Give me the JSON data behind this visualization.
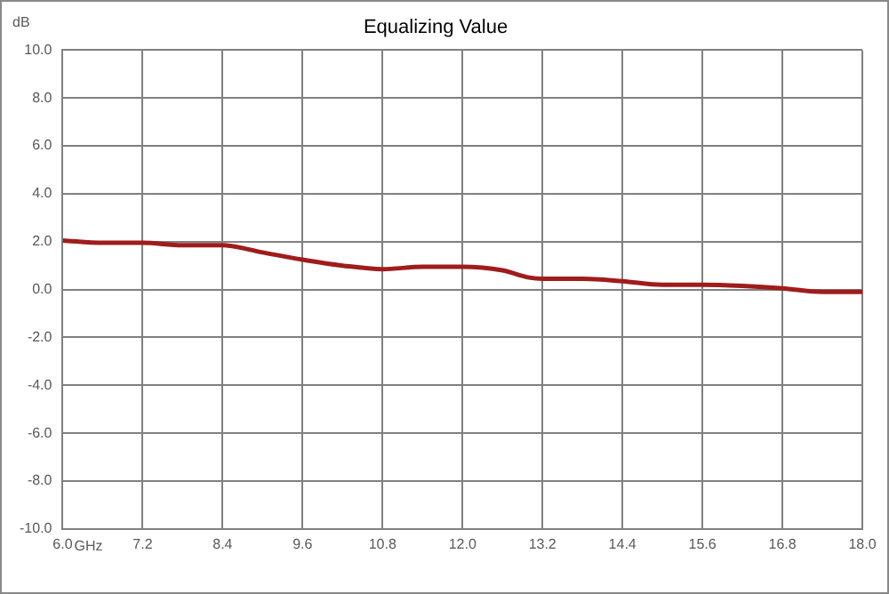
{
  "chart_data": {
    "type": "line",
    "title": "Equalizing Value",
    "xlabel": "GHz",
    "ylabel": "dB",
    "x": [
      6.0,
      6.6,
      7.2,
      7.8,
      8.4,
      9.0,
      9.6,
      10.2,
      10.8,
      11.4,
      12.0,
      12.6,
      13.0,
      13.2,
      13.8,
      14.4,
      15.0,
      15.6,
      16.2,
      16.8,
      17.4,
      18.0
    ],
    "series": [
      {
        "color": "#a01c1c",
        "values": [
          2.05,
          1.95,
          1.95,
          1.85,
          1.85,
          1.55,
          1.25,
          1.0,
          0.85,
          0.95,
          0.95,
          0.8,
          0.5,
          0.45,
          0.45,
          0.35,
          0.2,
          0.2,
          0.15,
          0.05,
          -0.1,
          -0.1
        ]
      }
    ],
    "xlim": [
      6.0,
      18.0
    ],
    "xticks": [
      {
        "value": 6,
        "label": "6.0"
      },
      7.2,
      8.4,
      9.6,
      10.8,
      {
        "value": 12,
        "label": "12.0"
      },
      13.2,
      14.4,
      15.6,
      16.8,
      {
        "value": 18,
        "label": "18.0"
      }
    ],
    "ylim": [
      -10,
      10
    ],
    "yticks": [
      {
        "value": -10,
        "label": "-10.0"
      },
      {
        "value": -8,
        "label": "-8.0"
      },
      {
        "value": -6,
        "label": "-6.0"
      },
      {
        "value": -4,
        "label": "-4.0"
      },
      {
        "value": -2,
        "label": "-2.0"
      },
      {
        "value": 0,
        "label": "0.0"
      },
      {
        "value": 2,
        "label": "2.0"
      },
      {
        "value": 4,
        "label": "4.0"
      },
      {
        "value": 6,
        "label": "6.0"
      },
      {
        "value": 8,
        "label": "8.0"
      },
      {
        "value": 10,
        "label": "10.0"
      }
    ],
    "grid": true,
    "legend": false,
    "marker": "none",
    "line_style": "solid"
  }
}
